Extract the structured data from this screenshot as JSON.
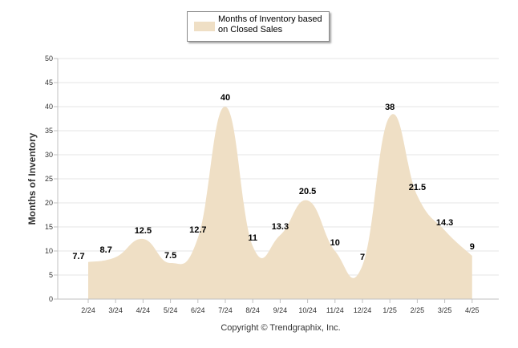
{
  "chart_data": {
    "type": "area",
    "categories": [
      "2/24",
      "3/24",
      "4/24",
      "5/24",
      "6/24",
      "7/24",
      "8/24",
      "9/24",
      "10/24",
      "11/24",
      "12/24",
      "1/25",
      "2/25",
      "3/25",
      "4/25"
    ],
    "series": [
      {
        "name": "Months of Inventory based on Closed Sales",
        "values": [
          7.7,
          8.7,
          12.5,
          7.5,
          12.7,
          40,
          11,
          13.3,
          20.5,
          10,
          7,
          38,
          21.5,
          14.3,
          9
        ],
        "color": "#efdfc5"
      }
    ],
    "data_labels": [
      "7.7",
      "8.7",
      "12.5",
      "7.5",
      "12.7",
      "40",
      "11",
      "13.3",
      "20.5",
      "10",
      "7",
      "38",
      "21.5",
      "14.3",
      "9"
    ],
    "ylabel": "Months of Inventory",
    "xlabel": "",
    "ylim": [
      0,
      50
    ],
    "yticks": [
      "0",
      "5",
      "10",
      "15",
      "20",
      "25",
      "30",
      "35",
      "40",
      "45",
      "50"
    ],
    "grid": true,
    "legend_placement": "top-center"
  },
  "legend": {
    "label": "Months of Inventory based on Closed Sales"
  },
  "footer": {
    "copyright": "Copyright © Trendgraphix, Inc."
  },
  "colors": {
    "fill": "#efdfc5",
    "grid": "#e6e6e6",
    "axis": "#c0c0c0"
  }
}
